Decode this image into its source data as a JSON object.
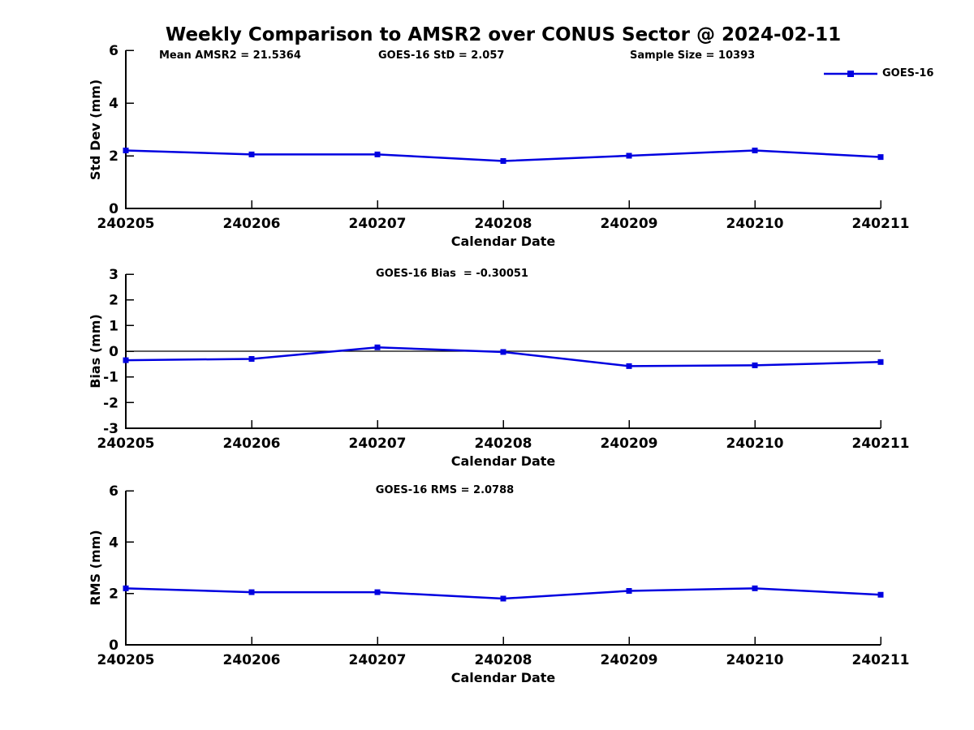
{
  "title": "Weekly Comparison to AMSR2 over CONUS Sector @ 2024-02-11",
  "legend": {
    "label": "GOES-16"
  },
  "colors": {
    "series": "#0000e0",
    "axis": "#000000",
    "zero_line": "#000000",
    "background": "#ffffff",
    "text": "#000000"
  },
  "annotations": {
    "mean_amsr2": "Mean AMSR2 = 21.5364",
    "goes16_std": "GOES-16 StD = 2.057",
    "sample_size": "Sample Size = 10393",
    "goes16_bias": "GOES-16 Bias  = -0.30051",
    "goes16_rms": "GOES-16 RMS = 2.0788"
  },
  "chart_data": [
    {
      "type": "line",
      "name": "std-dev",
      "title": "",
      "categories": [
        "240205",
        "240206",
        "240207",
        "240208",
        "240209",
        "240210",
        "240211"
      ],
      "series": [
        {
          "name": "GOES-16",
          "values": [
            2.2,
            2.05,
            2.05,
            1.8,
            2.0,
            2.2,
            1.95
          ]
        }
      ],
      "xlabel": "Calendar Date",
      "ylabel": "Std Dev (mm)",
      "ylim": [
        0,
        6
      ],
      "yticks": [
        0,
        2,
        4,
        6
      ],
      "grid": false,
      "zero_line": false,
      "legend_position": "top-right-outside",
      "annotations": [
        "Mean AMSR2 = 21.5364",
        "GOES-16 StD = 2.057",
        "Sample Size = 10393"
      ],
      "marker": "square"
    },
    {
      "type": "line",
      "name": "bias",
      "title": "",
      "categories": [
        "240205",
        "240206",
        "240207",
        "240208",
        "240209",
        "240210",
        "240211"
      ],
      "series": [
        {
          "name": "GOES-16",
          "values": [
            -0.35,
            -0.3,
            0.15,
            -0.03,
            -0.58,
            -0.55,
            -0.42
          ]
        }
      ],
      "xlabel": "Calendar Date",
      "ylabel": "Bias (mm)",
      "ylim": [
        -3,
        3
      ],
      "yticks": [
        -3,
        -2,
        -1,
        0,
        1,
        2,
        3
      ],
      "grid": false,
      "zero_line": true,
      "legend_position": "none",
      "annotations": [
        "GOES-16 Bias  = -0.30051"
      ],
      "marker": "square"
    },
    {
      "type": "line",
      "name": "rms",
      "title": "",
      "categories": [
        "240205",
        "240206",
        "240207",
        "240208",
        "240209",
        "240210",
        "240211"
      ],
      "series": [
        {
          "name": "GOES-16",
          "values": [
            2.2,
            2.05,
            2.05,
            1.8,
            2.1,
            2.2,
            1.95
          ]
        }
      ],
      "xlabel": "Calendar Date",
      "ylabel": "RMS (mm)",
      "ylim": [
        0,
        6
      ],
      "yticks": [
        0,
        2,
        4,
        6
      ],
      "grid": false,
      "zero_line": false,
      "legend_position": "none",
      "annotations": [
        "GOES-16 RMS = 2.0788"
      ],
      "marker": "square"
    }
  ]
}
